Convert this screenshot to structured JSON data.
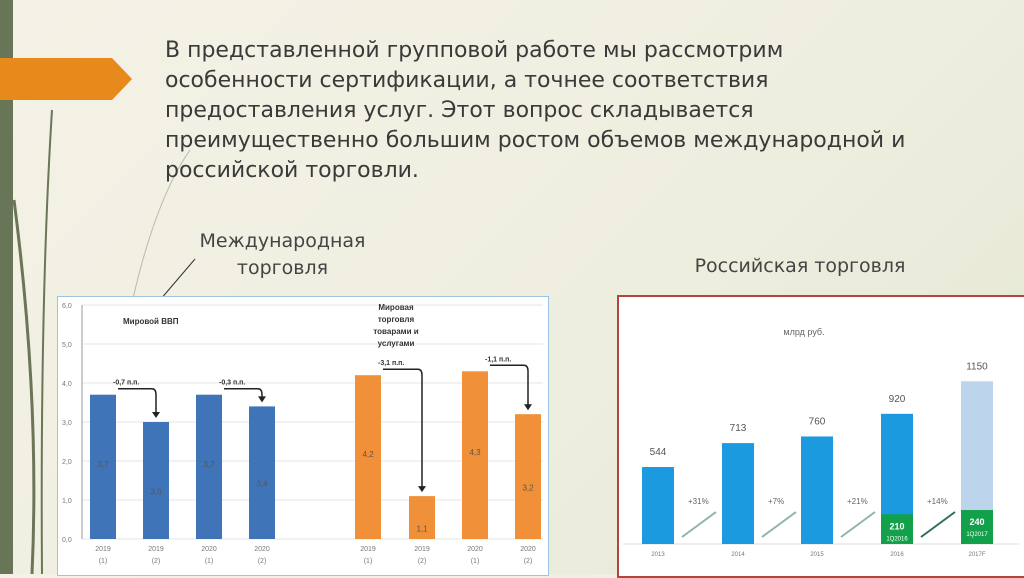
{
  "slide": {
    "text": "В представленной групповой работе мы рассмотрим особенности сертификации, а точнее соответствия предоставления услуг. Этот вопрос складывается преимущественно большим ростом объемов международной и российской торговли.",
    "intl_label": "Международная торговля",
    "ru_label": "Российская торговля"
  },
  "colors": {
    "blue": "#3f74b8",
    "orange": "#f0913a",
    "ru_blue": "#1b9ae0",
    "ru_light": "#bcd5ec",
    "ru_green": "#12a04a"
  },
  "chart_data": [
    {
      "type": "bar",
      "title": "Мировой ВВП / Мировая торговля товарами и услугами",
      "ylim": [
        0,
        6
      ],
      "yticks": [
        "0,0",
        "1,0",
        "2,0",
        "3,0",
        "4,0",
        "5,0",
        "6,0"
      ],
      "groups": [
        {
          "title": "Мировой ВВП",
          "color": "blue"
        },
        {
          "title": "Мировая торговля товарами и услугами",
          "color": "orange"
        }
      ],
      "categories": [
        "2019 (1)",
        "2019 (2)",
        "2020 (1)",
        "2020 (2)",
        "2019 (1)",
        "2019 (2)",
        "2020 (1)",
        "2020 (2)"
      ],
      "values": [
        3.7,
        3.0,
        3.7,
        3.4,
        4.2,
        1.1,
        4.3,
        3.2
      ],
      "value_labels": [
        "3,7",
        "3,0",
        "3,7",
        "3,4",
        "4,2",
        "1,1",
        "4,3",
        "3,2"
      ],
      "annotations": [
        "-0,7 п.п.",
        "-0,3 п.п.",
        "-3,1 п.п.",
        "-1,1 п.п."
      ]
    },
    {
      "type": "bar",
      "unit": "млрд руб.",
      "categories": [
        "2013",
        "2014",
        "2015",
        "2016",
        "2017F"
      ],
      "values": [
        544,
        713,
        760,
        920,
        1150
      ],
      "value_labels": [
        "544",
        "713",
        "760",
        "920",
        "1150"
      ],
      "quarter": {
        "values": [
          210,
          240
        ],
        "value_labels": [
          "210",
          "240"
        ],
        "labels": [
          "1Q2016",
          "1Q2017"
        ]
      },
      "growth": [
        "+31%",
        "+7%",
        "+21%",
        "+14%"
      ]
    }
  ]
}
